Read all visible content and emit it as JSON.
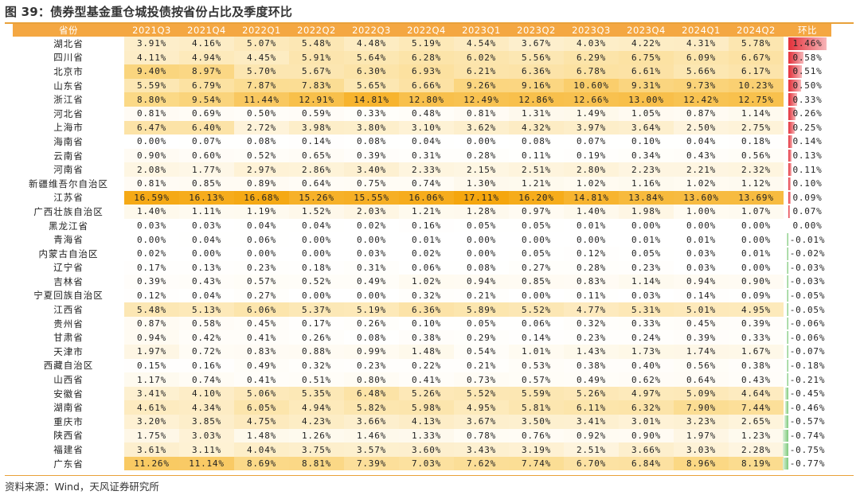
{
  "title": "图 39：债券型基金重仓城投债按省份占比及季度环比",
  "source": "资料来源：Wind，天风证券研究所",
  "colors": {
    "header": "#F4A742",
    "heat_high": "#F5A60E",
    "heat_mid": "#FBDA8A",
    "heat_low": "#FFFFFF",
    "bar_pos": "#E3303A",
    "bar_neg": "#7DC97A"
  },
  "chart_data": {
    "type": "table",
    "columns": [
      "省份",
      "2021Q3",
      "2021Q4",
      "2022Q1",
      "2022Q2",
      "2022Q3",
      "2022Q4",
      "2023Q1",
      "2023Q2",
      "2023Q3",
      "2023Q4",
      "2024Q1",
      "2024Q2",
      "环比"
    ],
    "rows": [
      {
        "province": "湖北省",
        "values": [
          "3.91%",
          "4.16%",
          "5.07%",
          "5.48%",
          "4.48%",
          "5.19%",
          "4.54%",
          "3.67%",
          "4.03%",
          "4.22%",
          "4.31%",
          "5.78%"
        ],
        "change": "1.46%",
        "change_value": 1.46
      },
      {
        "province": "四川省",
        "values": [
          "4.11%",
          "4.94%",
          "4.45%",
          "5.91%",
          "5.64%",
          "6.28%",
          "6.02%",
          "5.56%",
          "6.29%",
          "6.75%",
          "6.09%",
          "6.67%"
        ],
        "change": "0.58%",
        "change_value": 0.58
      },
      {
        "province": "北京市",
        "values": [
          "9.40%",
          "8.97%",
          "5.70%",
          "5.67%",
          "6.30%",
          "6.93%",
          "6.21%",
          "6.36%",
          "6.78%",
          "6.61%",
          "5.66%",
          "6.17%"
        ],
        "change": "0.51%",
        "change_value": 0.51
      },
      {
        "province": "山东省",
        "values": [
          "5.59%",
          "6.79%",
          "7.87%",
          "7.83%",
          "5.65%",
          "6.66%",
          "9.26%",
          "9.16%",
          "10.60%",
          "9.31%",
          "9.73%",
          "10.23%"
        ],
        "change": "0.50%",
        "change_value": 0.5
      },
      {
        "province": "浙江省",
        "values": [
          "8.80%",
          "9.54%",
          "11.44%",
          "12.91%",
          "14.81%",
          "12.80%",
          "12.49%",
          "12.86%",
          "12.66%",
          "13.00%",
          "12.42%",
          "12.75%"
        ],
        "change": "0.33%",
        "change_value": 0.33
      },
      {
        "province": "河北省",
        "values": [
          "0.81%",
          "0.69%",
          "0.50%",
          "0.59%",
          "0.33%",
          "0.48%",
          "0.81%",
          "1.31%",
          "1.49%",
          "1.05%",
          "0.87%",
          "1.14%"
        ],
        "change": "0.26%",
        "change_value": 0.26
      },
      {
        "province": "上海市",
        "values": [
          "6.47%",
          "6.40%",
          "2.72%",
          "3.98%",
          "3.80%",
          "3.10%",
          "3.62%",
          "4.32%",
          "3.97%",
          "3.64%",
          "2.50%",
          "2.75%"
        ],
        "change": "0.25%",
        "change_value": 0.25
      },
      {
        "province": "海南省",
        "values": [
          "0.00%",
          "0.07%",
          "0.08%",
          "0.14%",
          "0.08%",
          "0.04%",
          "0.00%",
          "0.08%",
          "0.07%",
          "0.10%",
          "0.04%",
          "0.18%"
        ],
        "change": "0.14%",
        "change_value": 0.14
      },
      {
        "province": "云南省",
        "values": [
          "0.90%",
          "0.60%",
          "0.52%",
          "0.65%",
          "0.39%",
          "0.31%",
          "0.28%",
          "0.11%",
          "0.19%",
          "0.34%",
          "0.43%",
          "0.56%"
        ],
        "change": "0.13%",
        "change_value": 0.13
      },
      {
        "province": "河南省",
        "values": [
          "2.08%",
          "1.77%",
          "2.97%",
          "2.86%",
          "3.40%",
          "2.33%",
          "2.15%",
          "2.51%",
          "2.80%",
          "2.23%",
          "2.21%",
          "2.32%"
        ],
        "change": "0.11%",
        "change_value": 0.11
      },
      {
        "province": "新疆维吾尔自治区",
        "values": [
          "0.81%",
          "0.85%",
          "0.89%",
          "0.64%",
          "0.75%",
          "0.74%",
          "1.30%",
          "1.21%",
          "1.02%",
          "1.16%",
          "1.02%",
          "1.12%"
        ],
        "change": "0.10%",
        "change_value": 0.1
      },
      {
        "province": "江苏省",
        "values": [
          "16.59%",
          "16.13%",
          "16.68%",
          "15.26%",
          "15.55%",
          "16.06%",
          "17.11%",
          "16.20%",
          "14.81%",
          "13.84%",
          "13.60%",
          "13.69%"
        ],
        "change": "0.09%",
        "change_value": 0.09
      },
      {
        "province": "广西壮族自治区",
        "values": [
          "1.40%",
          "1.11%",
          "1.19%",
          "1.52%",
          "2.03%",
          "1.21%",
          "1.28%",
          "0.97%",
          "1.40%",
          "1.98%",
          "1.00%",
          "1.07%"
        ],
        "change": "0.07%",
        "change_value": 0.07
      },
      {
        "province": "黑龙江省",
        "values": [
          "0.03%",
          "0.03%",
          "0.04%",
          "0.04%",
          "0.02%",
          "0.16%",
          "0.05%",
          "0.05%",
          "0.01%",
          "0.00%",
          "0.00%",
          "0.00%"
        ],
        "change": "0.00%",
        "change_value": 0.0
      },
      {
        "province": "青海省",
        "values": [
          "0.00%",
          "0.04%",
          "0.06%",
          "0.00%",
          "0.00%",
          "0.01%",
          "0.00%",
          "0.00%",
          "0.00%",
          "0.01%",
          "0.01%",
          "0.00%"
        ],
        "change": "-0.01%",
        "change_value": -0.01
      },
      {
        "province": "内蒙古自治区",
        "values": [
          "0.02%",
          "0.00%",
          "0.00%",
          "0.00%",
          "0.03%",
          "0.02%",
          "0.00%",
          "0.05%",
          "0.12%",
          "0.05%",
          "0.03%",
          "0.01%"
        ],
        "change": "-0.02%",
        "change_value": -0.02
      },
      {
        "province": "辽宁省",
        "values": [
          "0.17%",
          "0.13%",
          "0.23%",
          "0.18%",
          "0.31%",
          "0.06%",
          "0.08%",
          "0.27%",
          "0.28%",
          "0.23%",
          "0.03%",
          "0.00%"
        ],
        "change": "-0.03%",
        "change_value": -0.03
      },
      {
        "province": "吉林省",
        "values": [
          "0.39%",
          "0.43%",
          "0.57%",
          "0.52%",
          "0.49%",
          "1.02%",
          "0.94%",
          "0.85%",
          "0.83%",
          "1.14%",
          "0.94%",
          "0.90%"
        ],
        "change": "-0.03%",
        "change_value": -0.03
      },
      {
        "province": "宁夏回族自治区",
        "values": [
          "0.12%",
          "0.04%",
          "0.27%",
          "0.00%",
          "0.00%",
          "0.32%",
          "0.21%",
          "0.00%",
          "0.11%",
          "0.03%",
          "0.14%",
          "0.09%"
        ],
        "change": "-0.05%",
        "change_value": -0.05
      },
      {
        "province": "江西省",
        "values": [
          "5.48%",
          "5.13%",
          "6.06%",
          "5.37%",
          "5.19%",
          "6.36%",
          "5.89%",
          "5.52%",
          "4.77%",
          "5.31%",
          "5.01%",
          "4.95%"
        ],
        "change": "-0.05%",
        "change_value": -0.05
      },
      {
        "province": "贵州省",
        "values": [
          "0.87%",
          "0.58%",
          "0.45%",
          "0.17%",
          "0.26%",
          "0.10%",
          "0.05%",
          "0.06%",
          "0.32%",
          "0.33%",
          "0.45%",
          "0.39%"
        ],
        "change": "-0.06%",
        "change_value": -0.06
      },
      {
        "province": "甘肃省",
        "values": [
          "0.94%",
          "0.42%",
          "0.41%",
          "0.26%",
          "0.08%",
          "0.38%",
          "0.29%",
          "0.14%",
          "0.23%",
          "0.24%",
          "0.39%",
          "0.33%"
        ],
        "change": "-0.06%",
        "change_value": -0.06
      },
      {
        "province": "天津市",
        "values": [
          "1.97%",
          "0.72%",
          "0.83%",
          "0.88%",
          "0.99%",
          "1.48%",
          "0.54%",
          "1.01%",
          "1.43%",
          "1.73%",
          "1.74%",
          "1.67%"
        ],
        "change": "-0.07%",
        "change_value": -0.07
      },
      {
        "province": "西藏自治区",
        "values": [
          "0.15%",
          "0.16%",
          "0.49%",
          "0.32%",
          "0.23%",
          "0.22%",
          "0.21%",
          "0.53%",
          "0.38%",
          "0.40%",
          "0.56%",
          "0.38%"
        ],
        "change": "-0.18%",
        "change_value": -0.18
      },
      {
        "province": "山西省",
        "values": [
          "1.17%",
          "0.74%",
          "0.41%",
          "0.51%",
          "0.80%",
          "0.41%",
          "0.73%",
          "0.57%",
          "0.49%",
          "0.62%",
          "0.64%",
          "0.43%"
        ],
        "change": "-0.21%",
        "change_value": -0.21
      },
      {
        "province": "安徽省",
        "values": [
          "3.41%",
          "4.10%",
          "5.06%",
          "5.35%",
          "6.48%",
          "5.26%",
          "5.52%",
          "5.59%",
          "5.26%",
          "4.97%",
          "5.09%",
          "4.64%"
        ],
        "change": "-0.45%",
        "change_value": -0.45
      },
      {
        "province": "湖南省",
        "values": [
          "4.61%",
          "4.34%",
          "6.05%",
          "4.94%",
          "5.82%",
          "5.98%",
          "4.95%",
          "5.81%",
          "6.11%",
          "6.32%",
          "7.90%",
          "7.44%"
        ],
        "change": "-0.46%",
        "change_value": -0.46
      },
      {
        "province": "重庆市",
        "values": [
          "3.20%",
          "3.85%",
          "4.75%",
          "4.23%",
          "3.66%",
          "4.13%",
          "3.67%",
          "3.50%",
          "3.41%",
          "3.01%",
          "3.23%",
          "2.65%"
        ],
        "change": "-0.57%",
        "change_value": -0.57
      },
      {
        "province": "陕西省",
        "values": [
          "1.75%",
          "3.03%",
          "1.48%",
          "1.26%",
          "1.46%",
          "1.33%",
          "0.78%",
          "0.76%",
          "0.92%",
          "0.90%",
          "1.97%",
          "1.23%"
        ],
        "change": "-0.74%",
        "change_value": -0.74
      },
      {
        "province": "福建省",
        "values": [
          "3.61%",
          "3.11%",
          "4.04%",
          "3.75%",
          "3.57%",
          "3.60%",
          "3.43%",
          "3.19%",
          "2.51%",
          "3.66%",
          "3.03%",
          "2.28%"
        ],
        "change": "-0.75%",
        "change_value": -0.75
      },
      {
        "province": "广东省",
        "values": [
          "11.26%",
          "11.14%",
          "8.69%",
          "8.81%",
          "7.39%",
          "7.03%",
          "7.62%",
          "7.74%",
          "6.70%",
          "6.84%",
          "8.96%",
          "8.19%"
        ],
        "change": "-0.77%",
        "change_value": -0.77
      }
    ]
  }
}
